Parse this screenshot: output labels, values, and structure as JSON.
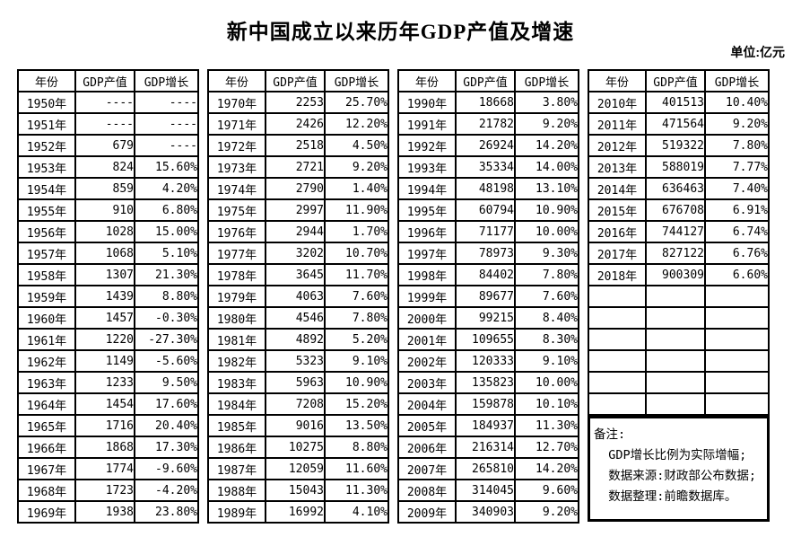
{
  "title": "新中国成立以来历年GDP产值及增速",
  "unit_label": "单位:亿元",
  "columns": [
    "年份",
    "GDP产值",
    "GDP增长"
  ],
  "groups": [
    {
      "rows": [
        [
          "1950年",
          "----",
          "----"
        ],
        [
          "1951年",
          "----",
          "----"
        ],
        [
          "1952年",
          "679",
          "----"
        ],
        [
          "1953年",
          "824",
          "15.60%"
        ],
        [
          "1954年",
          "859",
          "4.20%"
        ],
        [
          "1955年",
          "910",
          "6.80%"
        ],
        [
          "1956年",
          "1028",
          "15.00%"
        ],
        [
          "1957年",
          "1068",
          "5.10%"
        ],
        [
          "1958年",
          "1307",
          "21.30%"
        ],
        [
          "1959年",
          "1439",
          "8.80%"
        ],
        [
          "1960年",
          "1457",
          "-0.30%"
        ],
        [
          "1961年",
          "1220",
          "-27.30%"
        ],
        [
          "1962年",
          "1149",
          "-5.60%"
        ],
        [
          "1963年",
          "1233",
          "9.50%"
        ],
        [
          "1964年",
          "1454",
          "17.60%"
        ],
        [
          "1965年",
          "1716",
          "20.40%"
        ],
        [
          "1966年",
          "1868",
          "17.30%"
        ],
        [
          "1967年",
          "1774",
          "-9.60%"
        ],
        [
          "1968年",
          "1723",
          "-4.20%"
        ],
        [
          "1969年",
          "1938",
          "23.80%"
        ]
      ]
    },
    {
      "rows": [
        [
          "1970年",
          "2253",
          "25.70%"
        ],
        [
          "1971年",
          "2426",
          "12.20%"
        ],
        [
          "1972年",
          "2518",
          "4.50%"
        ],
        [
          "1973年",
          "2721",
          "9.20%"
        ],
        [
          "1974年",
          "2790",
          "1.40%"
        ],
        [
          "1975年",
          "2997",
          "11.90%"
        ],
        [
          "1976年",
          "2944",
          "1.70%"
        ],
        [
          "1977年",
          "3202",
          "10.70%"
        ],
        [
          "1978年",
          "3645",
          "11.70%"
        ],
        [
          "1979年",
          "4063",
          "7.60%"
        ],
        [
          "1980年",
          "4546",
          "7.80%"
        ],
        [
          "1981年",
          "4892",
          "5.20%"
        ],
        [
          "1982年",
          "5323",
          "9.10%"
        ],
        [
          "1983年",
          "5963",
          "10.90%"
        ],
        [
          "1984年",
          "7208",
          "15.20%"
        ],
        [
          "1985年",
          "9016",
          "13.50%"
        ],
        [
          "1986年",
          "10275",
          "8.80%"
        ],
        [
          "1987年",
          "12059",
          "11.60%"
        ],
        [
          "1988年",
          "15043",
          "11.30%"
        ],
        [
          "1989年",
          "16992",
          "4.10%"
        ]
      ]
    },
    {
      "rows": [
        [
          "1990年",
          "18668",
          "3.80%"
        ],
        [
          "1991年",
          "21782",
          "9.20%"
        ],
        [
          "1992年",
          "26924",
          "14.20%"
        ],
        [
          "1993年",
          "35334",
          "14.00%"
        ],
        [
          "1994年",
          "48198",
          "13.10%"
        ],
        [
          "1995年",
          "60794",
          "10.90%"
        ],
        [
          "1996年",
          "71177",
          "10.00%"
        ],
        [
          "1997年",
          "78973",
          "9.30%"
        ],
        [
          "1998年",
          "84402",
          "7.80%"
        ],
        [
          "1999年",
          "89677",
          "7.60%"
        ],
        [
          "2000年",
          "99215",
          "8.40%"
        ],
        [
          "2001年",
          "109655",
          "8.30%"
        ],
        [
          "2002年",
          "120333",
          "9.10%"
        ],
        [
          "2003年",
          "135823",
          "10.00%"
        ],
        [
          "2004年",
          "159878",
          "10.10%"
        ],
        [
          "2005年",
          "184937",
          "11.30%"
        ],
        [
          "2006年",
          "216314",
          "12.70%"
        ],
        [
          "2007年",
          "265810",
          "14.20%"
        ],
        [
          "2008年",
          "314045",
          "9.60%"
        ],
        [
          "2009年",
          "340903",
          "9.20%"
        ]
      ]
    },
    {
      "rows": [
        [
          "2010年",
          "401513",
          "10.40%"
        ],
        [
          "2011年",
          "471564",
          "9.20%"
        ],
        [
          "2012年",
          "519322",
          "7.80%"
        ],
        [
          "2013年",
          "588019",
          "7.77%"
        ],
        [
          "2014年",
          "636463",
          "7.40%"
        ],
        [
          "2015年",
          "676708",
          "6.91%"
        ],
        [
          "2016年",
          "744127",
          "6.74%"
        ],
        [
          "2017年",
          "827122",
          "6.76%"
        ],
        [
          "2018年",
          "900309",
          "6.60%"
        ]
      ],
      "empty_rows": 6
    }
  ],
  "notes": {
    "heading": "备注:",
    "items": [
      "GDP增长比例为实际增幅;",
      "数据来源:财政部公布数据;",
      "数据整理:前瞻数据库。"
    ]
  },
  "colors": {
    "border": "#000000",
    "background": "#ffffff",
    "text": "#000000"
  }
}
